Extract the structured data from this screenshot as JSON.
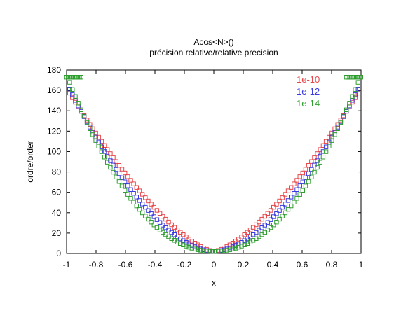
{
  "chart_data": {
    "type": "scatter",
    "title": "Acos<N>()",
    "subtitle": "précision relative/relative precision",
    "xlabel": "x",
    "ylabel": "ordre/order",
    "xlim": [
      -1,
      1
    ],
    "ylim": [
      0,
      180
    ],
    "xticks": [
      -1,
      -0.8,
      -0.6,
      -0.4,
      -0.2,
      0,
      0.2,
      0.4,
      0.6,
      0.8,
      1
    ],
    "xtick_labels": [
      "-1",
      "-0.8",
      "-0.6",
      "-0.4",
      "-0.2",
      "0",
      "0.2",
      "0.4",
      "0.6",
      "0.8",
      "1"
    ],
    "yticks": [
      0,
      20,
      40,
      60,
      80,
      100,
      120,
      140,
      160,
      180
    ],
    "ytick_labels": [
      "0",
      "20",
      "40",
      "60",
      "80",
      "100",
      "120",
      "140",
      "160",
      "180"
    ],
    "grid": false,
    "legend_position": "top-right",
    "marker": "open-square",
    "series": [
      {
        "name": "1e-10",
        "color": "#e8474a",
        "rho": 1.45,
        "lev": 160,
        "plateau": false
      },
      {
        "name": "1e-12",
        "color": "#3a3ae0",
        "rho": 1.75,
        "lev": 165,
        "plateau": false
      },
      {
        "name": "1e-14",
        "color": "#2e9e2e",
        "rho": 2.1,
        "lev": 173,
        "plateau": true
      }
    ]
  }
}
